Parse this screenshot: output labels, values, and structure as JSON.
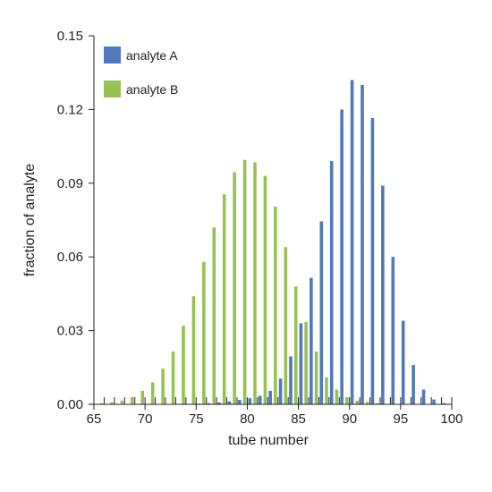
{
  "chart_data": {
    "type": "bar",
    "xlabel": "tube number",
    "ylabel": "fraction of analyte",
    "xlim": [
      65,
      100
    ],
    "ylim": [
      0,
      0.15
    ],
    "xticks": [
      65,
      70,
      75,
      80,
      85,
      90,
      95,
      100
    ],
    "yticks": [
      0.0,
      0.03,
      0.06,
      0.09,
      0.12,
      0.15
    ],
    "ytick_labels": [
      "0.00",
      "0.03",
      "0.06",
      "0.09",
      "0.12",
      "0.15"
    ],
    "legend_position": "top-left",
    "series": [
      {
        "name": "analyte A",
        "color": "#4f78bd",
        "x": [
          73,
          74,
          75,
          76,
          77,
          78,
          79,
          80,
          81,
          82,
          83,
          84,
          85,
          86,
          87,
          88,
          89,
          90,
          91,
          92,
          93,
          94,
          95,
          96,
          97,
          98,
          99
        ],
        "values": [
          0.0001,
          0.0002,
          0.0003,
          0.0005,
          0.0008,
          0.0012,
          0.0018,
          0.0025,
          0.0035,
          0.0055,
          0.0105,
          0.0195,
          0.033,
          0.0515,
          0.0745,
          0.099,
          0.12,
          0.132,
          0.13,
          0.1165,
          0.089,
          0.06,
          0.034,
          0.016,
          0.006,
          0.002,
          0.0005
        ]
      },
      {
        "name": "analyte B",
        "color": "#96c254",
        "x": [
          65,
          66,
          67,
          68,
          69,
          70,
          71,
          72,
          73,
          74,
          75,
          76,
          77,
          78,
          79,
          80,
          81,
          82,
          83,
          84,
          85,
          86,
          87,
          88,
          89,
          90,
          91,
          92,
          93,
          94
        ],
        "values": [
          0.0003,
          0.0005,
          0.0008,
          0.0015,
          0.003,
          0.0055,
          0.009,
          0.0145,
          0.0215,
          0.032,
          0.044,
          0.058,
          0.072,
          0.0855,
          0.0945,
          0.0995,
          0.0985,
          0.093,
          0.0805,
          0.064,
          0.048,
          0.0335,
          0.0215,
          0.011,
          0.006,
          0.003,
          0.0015,
          0.001,
          0.0005,
          0.0002
        ]
      }
    ]
  }
}
